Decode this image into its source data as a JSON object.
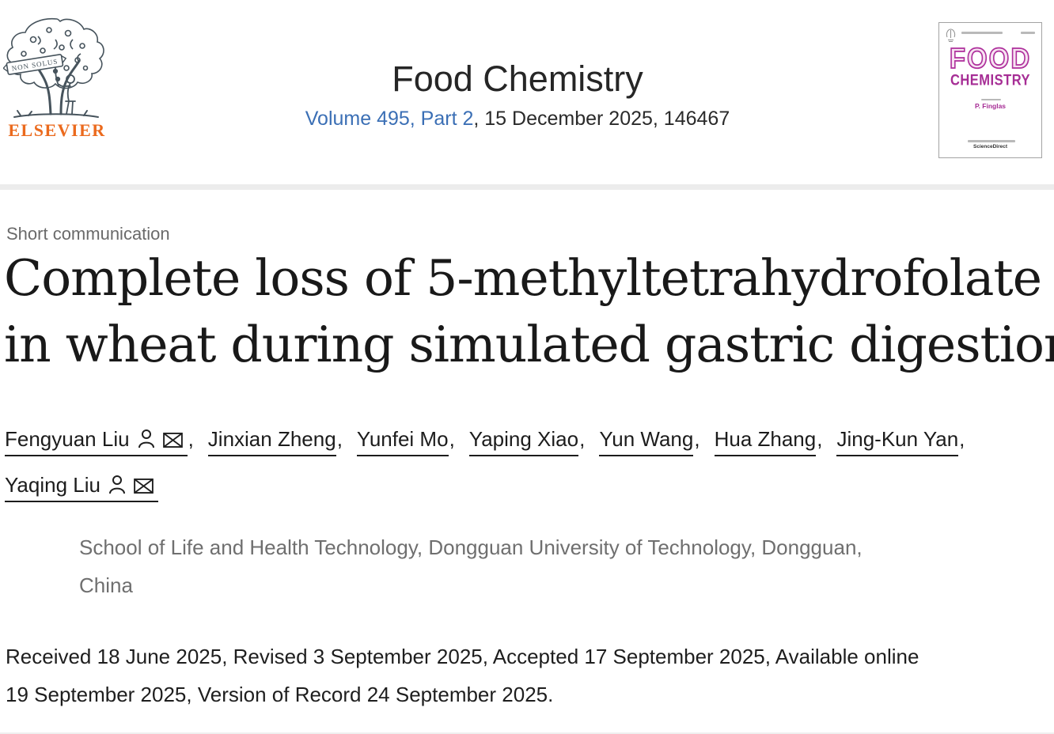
{
  "header": {
    "publisher_wordmark": "ELSEVIER",
    "logo_banner": "NON SOLUS",
    "journal_title": "Food Chemistry",
    "volume_link": "Volume 495, Part 2",
    "issue_suffix": ", 15 December 2025, 146467"
  },
  "cover": {
    "title_line1": "FOOD",
    "title_line2": "CHEMISTRY",
    "editor_name": "P. Finglas",
    "footer_brand": "ScienceDirect"
  },
  "article": {
    "section_label": "Short communication",
    "title_lines": [
      "Complete loss of 5-methyltetrahydrofolate",
      "in wheat during simulated gastric digestion"
    ],
    "authors": [
      {
        "name": "Fengyuan Liu",
        "profile_icon": true,
        "email_icon": true
      },
      {
        "name": "Jinxian Zheng"
      },
      {
        "name": "Yunfei Mo"
      },
      {
        "name": "Yaping Xiao"
      },
      {
        "name": "Yun Wang"
      },
      {
        "name": "Hua Zhang"
      },
      {
        "name": "Jing-Kun Yan"
      },
      {
        "name": "Yaqing Liu",
        "profile_icon": true,
        "email_icon": true
      }
    ],
    "affiliation_lines": [
      "School of Life and Health Technology, Dongguan University of Technology, Dongguan,",
      "China"
    ],
    "history_lines": [
      "Received 18 June 2025, Revised 3 September 2025, Accepted 17 September 2025, Available online",
      "19 September 2025, Version of Record 24 September 2025."
    ]
  },
  "colors": {
    "link_blue": "#3b6fb5",
    "elsevier_orange": "#eb6a1d",
    "cover_magenta": "#ae2f9c",
    "divider_gray": "#ececec"
  }
}
